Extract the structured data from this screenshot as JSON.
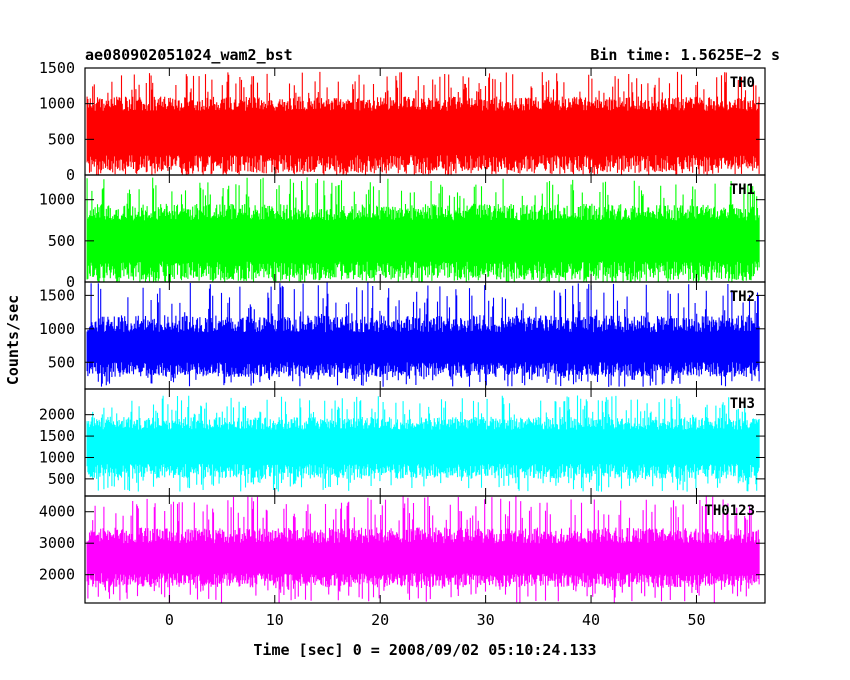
{
  "chart_data": {
    "type": "line",
    "title": "ae080902051024_wam2_bst",
    "subtitle": "Bin time: 1.5625E−2 s",
    "xlabel": "Time [sec] 0 = 2008/09/02 05:10:24.133",
    "ylabel": "Counts/sec",
    "xlim": [
      -8,
      56.5
    ],
    "xticks": [
      0,
      10,
      20,
      30,
      40,
      50
    ],
    "grid": false,
    "panels": [
      {
        "name": "TH0",
        "color": "#ff0000",
        "ylim": [
          0,
          1500
        ],
        "yticks": [
          0,
          500,
          1000,
          1500
        ],
        "x_range": [
          -7.8,
          56.0
        ],
        "series_min": [
          50,
          140
        ],
        "series_max": [
          1150,
          1450
        ],
        "series_low": [
          0,
          280
        ],
        "series_high": [
          900,
          1100
        ]
      },
      {
        "name": "TH1",
        "color": "#00ff00",
        "ylim": [
          0,
          1300
        ],
        "yticks": [
          0,
          500,
          1000
        ],
        "x_range": [
          -7.8,
          56.0
        ],
        "series_min": [
          0,
          120
        ],
        "series_max": [
          1000,
          1280
        ],
        "series_low": [
          0,
          250
        ],
        "series_high": [
          750,
          950
        ]
      },
      {
        "name": "TH2",
        "color": "#0000ff",
        "ylim": [
          100,
          1700
        ],
        "yticks": [
          500,
          1000,
          1500
        ],
        "x_range": [
          -7.8,
          56.0
        ],
        "series_min": [
          130,
          350
        ],
        "series_max": [
          1200,
          1700
        ],
        "series_low": [
          280,
          500
        ],
        "series_high": [
          950,
          1200
        ]
      },
      {
        "name": "TH3",
        "color": "#00ffff",
        "ylim": [
          100,
          2600
        ],
        "yticks": [
          500,
          1000,
          1500,
          2000
        ],
        "x_range": [
          -7.8,
          56.0
        ],
        "series_min": [
          200,
          550
        ],
        "series_max": [
          2000,
          2450
        ],
        "series_low": [
          500,
          850
        ],
        "series_high": [
          1650,
          1950
        ]
      },
      {
        "name": "TH0123",
        "color": "#ff00ff",
        "ylim": [
          1100,
          4500
        ],
        "yticks": [
          2000,
          3000,
          4000
        ],
        "x_range": [
          -7.8,
          56.0
        ],
        "series_min": [
          1100,
          1700
        ],
        "series_max": [
          3700,
          4500
        ],
        "series_low": [
          1600,
          2050
        ],
        "series_high": [
          3000,
          3500
        ]
      }
    ]
  }
}
